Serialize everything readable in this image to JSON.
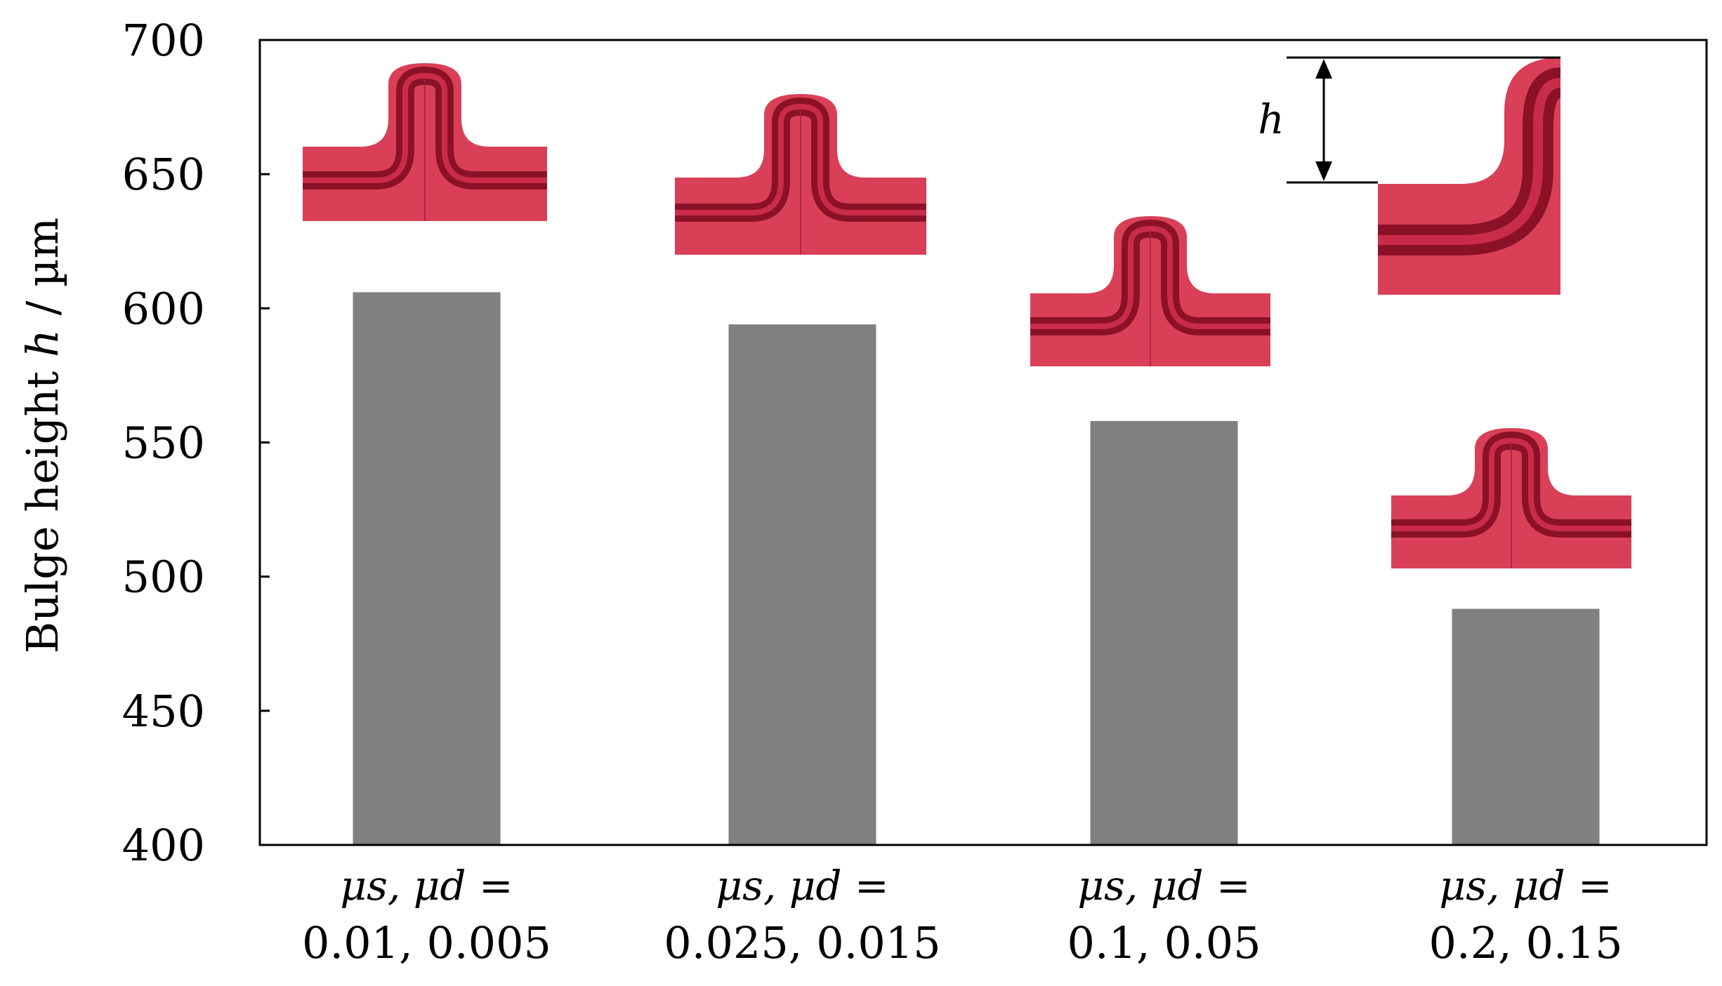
{
  "chart_data": {
    "type": "bar",
    "ylabel": "Bulge height",
    "ylabel_var": "h",
    "ylabel_unit": "/ µm",
    "ylim": [
      400,
      700
    ],
    "yticks": [
      400,
      450,
      500,
      550,
      600,
      650,
      700
    ],
    "grid": false,
    "legend": "none",
    "bar_color": "#808080",
    "categories": [
      {
        "prefix": "μs, μd =",
        "values_label": "0.01, 0.005"
      },
      {
        "prefix": "μs, μd =",
        "values_label": "0.025, 0.015"
      },
      {
        "prefix": "μs, μd =",
        "values_label": "0.1, 0.05"
      },
      {
        "prefix": "μs, μd =",
        "values_label": "0.2, 0.15"
      }
    ],
    "values": [
      606,
      594,
      558,
      488
    ],
    "inset_annotation": "h",
    "inset_colors": {
      "outer": "#d94058",
      "band": "#8b1226",
      "band_highlight": "#c92c48"
    }
  }
}
